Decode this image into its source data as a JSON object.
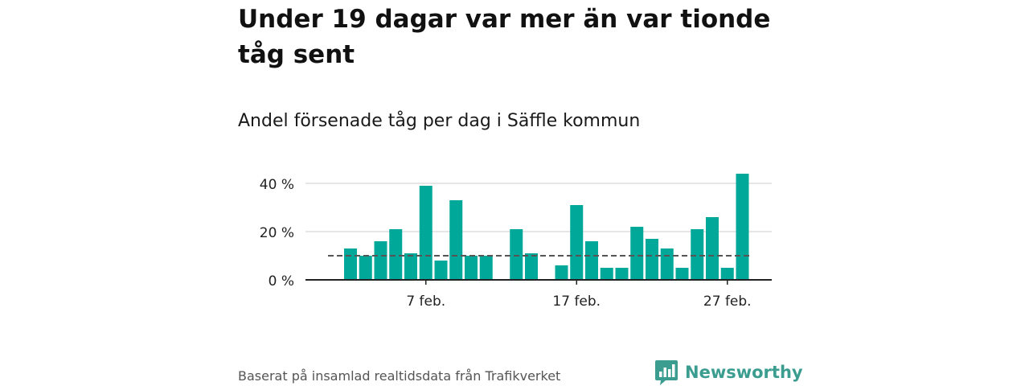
{
  "header": {
    "title": "Under 19 dagar var mer än var tionde tåg sent",
    "subtitle": "Andel försenade tåg per dag i Säffle kommun"
  },
  "footer": {
    "source": "Baserat på insamlad realtidsdata från Trafikverket",
    "brand": "Newsworthy"
  },
  "colors": {
    "bar": "#00a89a",
    "reference_line": "#555555",
    "grid": "#dddddd",
    "axis": "#222222",
    "brand": "#3a9d8f"
  },
  "icons": {
    "brand": "newsworthy-logo-icon"
  },
  "chart_data": {
    "type": "bar",
    "title": "Andel försenade tåg per dag i Säffle kommun",
    "x_start_day": 2,
    "categories": [
      "2 feb.",
      "3 feb.",
      "4 feb.",
      "5 feb.",
      "6 feb.",
      "7 feb.",
      "8 feb.",
      "9 feb.",
      "10 feb.",
      "11 feb.",
      "12 feb.",
      "13 feb.",
      "14 feb.",
      "15 feb.",
      "16 feb.",
      "17 feb.",
      "18 feb.",
      "19 feb.",
      "20 feb.",
      "21 feb.",
      "22 feb.",
      "23 feb.",
      "24 feb.",
      "25 feb.",
      "26 feb.",
      "27 feb.",
      "28 feb."
    ],
    "values": [
      13,
      10,
      16,
      21,
      11,
      39,
      8,
      33,
      10,
      10,
      null,
      21,
      11,
      null,
      6,
      31,
      16,
      5,
      5,
      22,
      17,
      13,
      5,
      21,
      26,
      5,
      44
    ],
    "reference_line": 10,
    "yticks": [
      0,
      20,
      40
    ],
    "ytick_labels": [
      "0 %",
      "20 %",
      "40 %"
    ],
    "xticks": [
      "7 feb.",
      "17 feb.",
      "27 feb."
    ],
    "ylim": [
      0,
      45
    ],
    "xlabel": "",
    "ylabel": "",
    "grid": true
  }
}
